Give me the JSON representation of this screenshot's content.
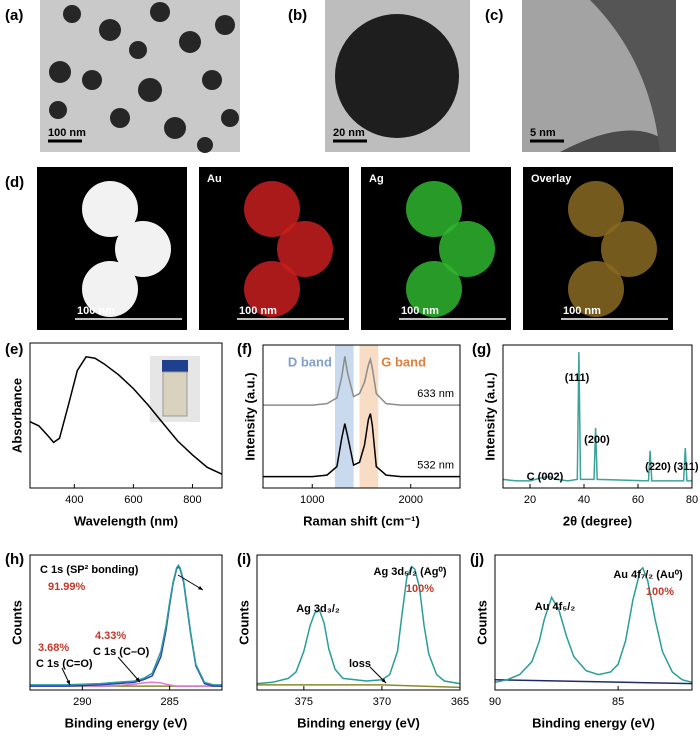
{
  "figure": {
    "tem": [
      {
        "label": "(a)",
        "scale_bar": "100 nm"
      },
      {
        "label": "(b)",
        "scale_bar": "20 nm"
      },
      {
        "label": "(c)",
        "scale_bar": "5 nm"
      }
    ],
    "mapping": {
      "label": "(d)",
      "tiles": [
        {
          "scale_bar": "100 nm",
          "color": "#f2f2f2"
        },
        {
          "title": "Au",
          "scale_bar": "100 nm",
          "color": "#c81e1e"
        },
        {
          "title": "Ag",
          "scale_bar": "100 nm",
          "color": "#2fb52f"
        },
        {
          "title": "Overlay",
          "scale_bar": "100 nm",
          "color": "#8a6a22"
        }
      ]
    }
  },
  "chart_data": [
    {
      "type": "line",
      "panel": "(e)",
      "xlabel": "Wavelength (nm)",
      "ylabel": "Absorbance",
      "xlim": [
        250,
        900
      ],
      "xticks": [
        400,
        600,
        800
      ],
      "ylim": [
        0,
        1.05
      ],
      "series": [
        {
          "color": "#000000",
          "x": [
            250,
            280,
            310,
            330,
            350,
            380,
            410,
            440,
            470,
            500,
            550,
            600,
            650,
            700,
            750,
            800,
            850,
            900
          ],
          "values": [
            0.48,
            0.45,
            0.38,
            0.33,
            0.36,
            0.6,
            0.85,
            0.95,
            0.94,
            0.9,
            0.82,
            0.72,
            0.6,
            0.47,
            0.34,
            0.24,
            0.15,
            0.1
          ]
        }
      ]
    },
    {
      "type": "line",
      "panel": "(f)",
      "xlabel": "Raman shift (cm⁻¹)",
      "ylabel": "Intensity (a.u.)",
      "xlim": [
        500,
        2500
      ],
      "xticks": [
        1000,
        2000
      ],
      "ylim": [
        0,
        1
      ],
      "bands": [
        {
          "label": "D band",
          "range": [
            1230,
            1420
          ],
          "color": "#c9d9ee",
          "text_color": "#7f9fd0"
        },
        {
          "label": "G band",
          "range": [
            1480,
            1670
          ],
          "color": "#f9dcc4",
          "text_color": "#e0803a"
        }
      ],
      "series": [
        {
          "name": "633 nm",
          "color": "#8c8c8c",
          "x": [
            500,
            800,
            1000,
            1150,
            1250,
            1300,
            1330,
            1360,
            1420,
            1480,
            1530,
            1570,
            1590,
            1610,
            1650,
            1750,
            1900,
            2100,
            2300,
            2500
          ],
          "values": [
            0.58,
            0.58,
            0.58,
            0.59,
            0.63,
            0.78,
            0.92,
            0.8,
            0.64,
            0.66,
            0.74,
            0.86,
            0.9,
            0.84,
            0.66,
            0.59,
            0.58,
            0.58,
            0.58,
            0.58
          ]
        },
        {
          "name": "532 nm",
          "color": "#000000",
          "x": [
            500,
            800,
            1000,
            1150,
            1250,
            1300,
            1330,
            1360,
            1420,
            1480,
            1530,
            1570,
            1590,
            1610,
            1650,
            1750,
            1900,
            2100,
            2300,
            2500
          ],
          "values": [
            0.08,
            0.08,
            0.08,
            0.09,
            0.15,
            0.35,
            0.45,
            0.36,
            0.16,
            0.18,
            0.3,
            0.48,
            0.52,
            0.44,
            0.15,
            0.09,
            0.08,
            0.08,
            0.08,
            0.08
          ]
        }
      ]
    },
    {
      "type": "line",
      "panel": "(g)",
      "xlabel": "2θ (degree)",
      "ylabel": "Intensity (a.u.)",
      "xlim": [
        10,
        80
      ],
      "xticks": [
        20,
        40,
        60,
        80
      ],
      "ylim": [
        0,
        1
      ],
      "annotations": [
        {
          "text": "(111)",
          "color": "#000000"
        },
        {
          "text": "(200)",
          "color": "#000000"
        },
        {
          "text": "(220)",
          "color": "#000000"
        },
        {
          "text": "(311)",
          "color": "#000000"
        },
        {
          "text": "C (002)",
          "color": "#000000"
        }
      ],
      "series": [
        {
          "color": "#3aa39a",
          "x": [
            10,
            15,
            20,
            24,
            27,
            30,
            34,
            37.5,
            38.1,
            38.7,
            43.7,
            44.3,
            44.9,
            63.9,
            64.5,
            65.1,
            76.9,
            77.5,
            78.1,
            80
          ],
          "values": [
            0.06,
            0.05,
            0.05,
            0.07,
            0.08,
            0.06,
            0.05,
            0.06,
            0.95,
            0.06,
            0.06,
            0.42,
            0.06,
            0.05,
            0.26,
            0.05,
            0.05,
            0.28,
            0.05,
            0.05
          ]
        }
      ]
    },
    {
      "type": "line",
      "panel": "(h)",
      "xlabel": "Binding energy (eV)",
      "ylabel": "Counts",
      "xlim": [
        293,
        282
      ],
      "xticks": [
        290,
        285
      ],
      "ylim": [
        0,
        1.05
      ],
      "annotations": [
        {
          "text": "C 1s (SP² bonding)",
          "color": "#000000"
        },
        {
          "text": "91.99%",
          "color": "#c0392b"
        },
        {
          "text": "4.33%",
          "color": "#c0392b"
        },
        {
          "text": "C 1s (C–O)",
          "color": "#000000"
        },
        {
          "text": "3.68%",
          "color": "#c0392b"
        },
        {
          "text": "C 1s (C=O)",
          "color": "#000000"
        }
      ],
      "series": [
        {
          "color": "#8a8a2a",
          "x": [
            293,
            282
          ],
          "values": [
            0.03,
            0.03
          ]
        },
        {
          "color": "#e07ad0",
          "x": [
            293,
            291,
            289,
            288,
            287,
            286.5,
            286,
            285.5,
            285.2,
            285,
            284.8,
            284.6,
            284.5,
            284.4,
            284.2,
            284,
            283.8,
            283.5,
            283,
            282.5,
            282
          ],
          "values": [
            0.03,
            0.03,
            0.03,
            0.035,
            0.045,
            0.055,
            0.06,
            0.055,
            0.045,
            0.04,
            0.035,
            0.03,
            0.03,
            0.03,
            0.03,
            0.03,
            0.03,
            0.03,
            0.03,
            0.03,
            0.03
          ]
        },
        {
          "color": "#2b3fbf",
          "x": [
            293,
            291,
            289,
            288,
            287,
            286.5,
            286,
            285.5,
            285.2,
            285,
            284.8,
            284.6,
            284.5,
            284.4,
            284.2,
            284,
            283.8,
            283.5,
            283,
            282.5,
            282
          ],
          "values": [
            0.03,
            0.03,
            0.04,
            0.05,
            0.06,
            0.08,
            0.11,
            0.26,
            0.47,
            0.66,
            0.83,
            0.94,
            0.96,
            0.94,
            0.84,
            0.64,
            0.44,
            0.19,
            0.05,
            0.03,
            0.03
          ]
        },
        {
          "color": "#2a9d9a",
          "x": [
            293,
            291,
            289,
            288,
            287,
            286.5,
            286,
            285.5,
            285.2,
            285,
            284.8,
            284.6,
            284.5,
            284.4,
            284.2,
            284,
            283.8,
            283.5,
            283,
            282.5,
            282
          ],
          "values": [
            0.04,
            0.04,
            0.05,
            0.06,
            0.07,
            0.09,
            0.13,
            0.3,
            0.5,
            0.68,
            0.84,
            0.95,
            0.97,
            0.95,
            0.85,
            0.65,
            0.45,
            0.2,
            0.06,
            0.04,
            0.04
          ]
        }
      ]
    },
    {
      "type": "line",
      "panel": "(i)",
      "xlabel": "Binding energy (eV)",
      "ylabel": "Counts",
      "xlim": [
        378,
        365
      ],
      "xticks": [
        375,
        370,
        365
      ],
      "ylim": [
        0,
        1.05
      ],
      "annotations": [
        {
          "text": "Ag 3d₃/₂",
          "color": "#000000"
        },
        {
          "text": "Ag 3d₅/₂ (Ag⁰)",
          "color": "#000000"
        },
        {
          "text": "100%",
          "color": "#c0392b"
        },
        {
          "text": "loss",
          "color": "#000000"
        }
      ],
      "series": [
        {
          "color": "#8a8a2a",
          "x": [
            378,
            370,
            365
          ],
          "values": [
            0.04,
            0.04,
            0.02
          ]
        },
        {
          "color": "#2a9d9a",
          "x": [
            378,
            377,
            376,
            375.5,
            375,
            374.6,
            374.3,
            374,
            373.7,
            373.4,
            373,
            372.5,
            371,
            370,
            369.5,
            369,
            368.7,
            368.4,
            368.1,
            367.9,
            367.6,
            367.3,
            367,
            366.5,
            366,
            365
          ],
          "values": [
            0.05,
            0.06,
            0.09,
            0.14,
            0.3,
            0.5,
            0.6,
            0.62,
            0.52,
            0.32,
            0.16,
            0.09,
            0.07,
            0.08,
            0.12,
            0.3,
            0.6,
            0.88,
            0.96,
            0.94,
            0.8,
            0.5,
            0.28,
            0.12,
            0.07,
            0.05
          ]
        }
      ]
    },
    {
      "type": "line",
      "panel": "(j)",
      "xlabel": "Binding energy (eV)",
      "ylabel": "Counts",
      "xlim": [
        90,
        82
      ],
      "xticks": [
        90,
        85
      ],
      "ylim": [
        0,
        1.05
      ],
      "annotations": [
        {
          "text": "Au 4f₅/₂",
          "color": "#000000"
        },
        {
          "text": "Au 4f₇/₂ (Au⁰)",
          "color": "#000000"
        },
        {
          "text": "100%",
          "color": "#c0392b"
        }
      ],
      "series": [
        {
          "color": "#1f2a6b",
          "x": [
            90,
            82
          ],
          "values": [
            0.08,
            0.05
          ]
        },
        {
          "color": "#2a9d9a",
          "x": [
            90,
            89.5,
            89,
            88.5,
            88.2,
            88,
            87.7,
            87.4,
            87.1,
            86.8,
            86.3,
            85.8,
            85.3,
            85,
            84.7,
            84.4,
            84.1,
            84,
            83.8,
            83.5,
            83.2,
            82.8,
            82.4,
            82
          ],
          "values": [
            0.06,
            0.08,
            0.12,
            0.22,
            0.38,
            0.55,
            0.72,
            0.62,
            0.42,
            0.26,
            0.15,
            0.12,
            0.14,
            0.2,
            0.38,
            0.7,
            0.93,
            0.95,
            0.85,
            0.55,
            0.3,
            0.14,
            0.08,
            0.06
          ]
        }
      ]
    }
  ]
}
